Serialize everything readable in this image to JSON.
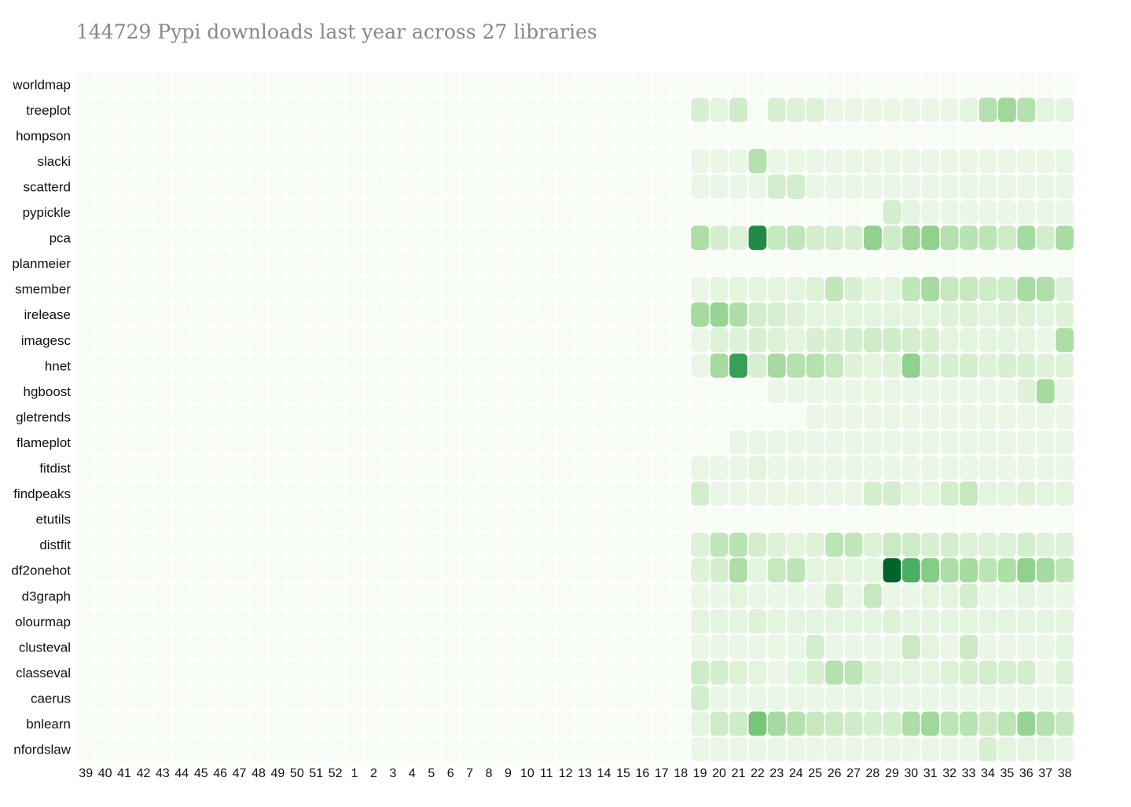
{
  "chart_data": {
    "type": "heatmap",
    "title": "144729 Pypi downloads last year across 27 libraries",
    "columns": [
      "39",
      "40",
      "41",
      "42",
      "43",
      "44",
      "45",
      "46",
      "47",
      "48",
      "49",
      "50",
      "51",
      "52",
      "1",
      "2",
      "3",
      "4",
      "5",
      "6",
      "7",
      "8",
      "9",
      "10",
      "11",
      "12",
      "13",
      "14",
      "15",
      "16",
      "17",
      "18",
      "19",
      "20",
      "21",
      "22",
      "23",
      "24",
      "25",
      "26",
      "27",
      "28",
      "29",
      "30",
      "31",
      "32",
      "33",
      "34",
      "35",
      "36",
      "37",
      "38"
    ],
    "rows": [
      "worldmap",
      "treeplot",
      "hompson",
      "slacki",
      "scatterd",
      "pypickle",
      "pca",
      "planmeier",
      "smember",
      "irelease",
      "imagesc",
      "hnet",
      "hgboost",
      "gletrends",
      "flameplot",
      "fitdist",
      "findpeaks",
      "etutils",
      "distfit",
      "df2onehot",
      "d3graph",
      "olourmap",
      "clusteval",
      "classeval",
      "caerus",
      "bnlearn",
      "nfordslaw"
    ],
    "colors": {
      "scale": [
        "#f7fcf5",
        "#e5f5e0",
        "#c7e9c0",
        "#a1d99b",
        "#74c476",
        "#41ab5d",
        "#238b45",
        "#006d2c",
        "#00441b"
      ],
      "background": "#ffffff"
    },
    "values": {
      "worldmap": [
        0,
        0,
        0,
        0,
        0,
        0,
        0,
        0,
        0,
        0,
        0,
        0,
        0,
        0,
        0,
        0,
        0,
        0,
        0,
        0,
        0,
        0,
        0,
        0,
        0,
        0,
        0,
        0,
        0,
        0,
        0,
        0,
        0,
        0,
        0,
        0,
        0,
        0,
        0,
        0,
        0,
        0,
        0,
        0,
        0,
        0,
        0,
        0,
        0,
        0,
        0,
        0
      ],
      "treeplot": [
        0,
        0,
        0,
        0,
        0,
        0,
        0,
        0,
        0,
        0,
        0,
        0,
        0,
        0,
        0,
        0,
        0,
        0,
        0,
        0,
        0,
        0,
        0,
        0,
        0,
        0,
        0,
        0,
        0,
        0,
        0,
        0,
        4,
        2,
        6,
        0,
        4,
        3,
        3,
        1,
        1,
        1,
        1,
        1,
        1,
        1,
        2,
        12,
        18,
        12,
        2,
        2
      ],
      "hompson": [
        0,
        0,
        0,
        0,
        0,
        0,
        0,
        0,
        0,
        0,
        0,
        0,
        0,
        0,
        0,
        0,
        0,
        0,
        0,
        0,
        0,
        0,
        0,
        0,
        0,
        0,
        0,
        0,
        0,
        0,
        0,
        0,
        0,
        0,
        0,
        0,
        0,
        0,
        0,
        0,
        0,
        0,
        0,
        0,
        0,
        0,
        0,
        0,
        0,
        0,
        0,
        0
      ],
      "slacki": [
        0,
        0,
        0,
        0,
        0,
        0,
        0,
        0,
        0,
        0,
        0,
        0,
        0,
        0,
        0,
        0,
        0,
        0,
        0,
        0,
        0,
        0,
        0,
        0,
        0,
        0,
        0,
        0,
        0,
        0,
        0,
        0,
        1,
        1,
        1,
        12,
        1,
        1,
        1,
        1,
        1,
        1,
        1,
        1,
        1,
        1,
        1,
        1,
        1,
        1,
        1,
        1
      ],
      "scatterd": [
        0,
        0,
        0,
        0,
        0,
        0,
        0,
        0,
        0,
        0,
        0,
        0,
        0,
        0,
        0,
        0,
        0,
        0,
        0,
        0,
        0,
        0,
        0,
        0,
        0,
        0,
        0,
        0,
        0,
        0,
        0,
        0,
        1,
        1,
        1,
        1,
        5,
        5,
        1,
        1,
        1,
        1,
        1,
        1,
        1,
        1,
        1,
        1,
        1,
        1,
        1,
        1
      ],
      "pypickle": [
        0,
        0,
        0,
        0,
        0,
        0,
        0,
        0,
        0,
        0,
        0,
        0,
        0,
        0,
        0,
        0,
        0,
        0,
        0,
        0,
        0,
        0,
        0,
        0,
        0,
        0,
        0,
        0,
        0,
        0,
        0,
        0,
        0,
        0,
        0,
        0,
        0,
        0,
        0,
        0,
        0,
        0,
        5,
        2,
        1,
        1,
        1,
        1,
        1,
        1,
        1,
        1
      ],
      "pca": [
        0,
        0,
        0,
        0,
        0,
        0,
        0,
        0,
        0,
        0,
        0,
        0,
        0,
        0,
        0,
        0,
        0,
        0,
        0,
        0,
        0,
        0,
        0,
        0,
        0,
        0,
        0,
        0,
        0,
        0,
        0,
        0,
        14,
        5,
        3,
        70,
        8,
        9,
        5,
        5,
        4,
        22,
        6,
        18,
        22,
        12,
        11,
        10,
        6,
        16,
        5,
        15
      ],
      "planmeier": [
        0,
        0,
        0,
        0,
        0,
        0,
        0,
        0,
        0,
        0,
        0,
        0,
        0,
        0,
        0,
        0,
        0,
        0,
        0,
        0,
        0,
        0,
        0,
        0,
        0,
        0,
        0,
        0,
        0,
        0,
        0,
        0,
        0,
        0,
        0,
        0,
        0,
        0,
        0,
        0,
        0,
        0,
        0,
        0,
        0,
        0,
        0,
        0,
        0,
        0,
        0,
        0
      ],
      "smember": [
        0,
        0,
        0,
        0,
        0,
        0,
        0,
        0,
        0,
        0,
        0,
        0,
        0,
        0,
        0,
        0,
        0,
        0,
        0,
        0,
        0,
        0,
        0,
        0,
        0,
        0,
        0,
        0,
        0,
        0,
        0,
        0,
        1,
        2,
        2,
        2,
        2,
        2,
        3,
        9,
        4,
        2,
        2,
        9,
        16,
        8,
        8,
        6,
        6,
        15,
        13,
        3
      ],
      "irelease": [
        0,
        0,
        0,
        0,
        0,
        0,
        0,
        0,
        0,
        0,
        0,
        0,
        0,
        0,
        0,
        0,
        0,
        0,
        0,
        0,
        0,
        0,
        0,
        0,
        0,
        0,
        0,
        0,
        0,
        0,
        0,
        0,
        16,
        20,
        14,
        5,
        4,
        3,
        2,
        2,
        2,
        2,
        2,
        2,
        2,
        3,
        3,
        2,
        3,
        3,
        2,
        3
      ],
      "imagesc": [
        0,
        0,
        0,
        0,
        0,
        0,
        0,
        0,
        0,
        0,
        0,
        0,
        0,
        0,
        0,
        0,
        0,
        0,
        0,
        0,
        0,
        0,
        0,
        0,
        0,
        0,
        0,
        0,
        0,
        0,
        0,
        0,
        1,
        3,
        3,
        4,
        3,
        2,
        4,
        4,
        5,
        6,
        6,
        5,
        4,
        2,
        2,
        2,
        2,
        2,
        1,
        14
      ],
      "hnet": [
        0,
        0,
        0,
        0,
        0,
        0,
        0,
        0,
        0,
        0,
        0,
        0,
        0,
        0,
        0,
        0,
        0,
        0,
        0,
        0,
        0,
        0,
        0,
        0,
        0,
        0,
        0,
        0,
        0,
        0,
        0,
        0,
        1,
        16,
        55,
        4,
        16,
        12,
        12,
        8,
        3,
        2,
        3,
        22,
        4,
        4,
        5,
        3,
        4,
        4,
        3,
        3
      ],
      "hgboost": [
        0,
        0,
        0,
        0,
        0,
        0,
        0,
        0,
        0,
        0,
        0,
        0,
        0,
        0,
        0,
        0,
        0,
        0,
        0,
        0,
        0,
        0,
        0,
        0,
        0,
        0,
        0,
        0,
        0,
        0,
        0,
        0,
        0,
        0,
        0,
        0,
        1,
        1,
        1,
        1,
        1,
        1,
        1,
        1,
        1,
        1,
        1,
        1,
        1,
        3,
        16,
        1
      ],
      "gletrends": [
        0,
        0,
        0,
        0,
        0,
        0,
        0,
        0,
        0,
        0,
        0,
        0,
        0,
        0,
        0,
        0,
        0,
        0,
        0,
        0,
        0,
        0,
        0,
        0,
        0,
        0,
        0,
        0,
        0,
        0,
        0,
        0,
        0,
        0,
        0,
        0,
        0,
        0,
        1,
        1,
        1,
        1,
        1,
        1,
        1,
        1,
        1,
        1,
        1,
        1,
        1,
        1
      ],
      "flameplot": [
        0,
        0,
        0,
        0,
        0,
        0,
        0,
        0,
        0,
        0,
        0,
        0,
        0,
        0,
        0,
        0,
        0,
        0,
        0,
        0,
        0,
        0,
        0,
        0,
        0,
        0,
        0,
        0,
        0,
        0,
        0,
        0,
        0,
        0,
        1,
        1,
        1,
        1,
        1,
        1,
        1,
        1,
        1,
        1,
        1,
        1,
        1,
        1,
        1,
        1,
        1,
        1
      ],
      "fitdist": [
        0,
        0,
        0,
        0,
        0,
        0,
        0,
        0,
        0,
        0,
        0,
        0,
        0,
        0,
        0,
        0,
        0,
        0,
        0,
        0,
        0,
        0,
        0,
        0,
        0,
        0,
        0,
        0,
        0,
        0,
        0,
        0,
        1,
        1,
        1,
        2,
        1,
        1,
        1,
        1,
        1,
        1,
        1,
        1,
        1,
        1,
        1,
        1,
        1,
        1,
        1,
        1
      ],
      "findpeaks": [
        0,
        0,
        0,
        0,
        0,
        0,
        0,
        0,
        0,
        0,
        0,
        0,
        0,
        0,
        0,
        0,
        0,
        0,
        0,
        0,
        0,
        0,
        0,
        0,
        0,
        0,
        0,
        0,
        0,
        0,
        0,
        0,
        5,
        1,
        1,
        1,
        1,
        1,
        1,
        1,
        1,
        5,
        5,
        2,
        2,
        5,
        8,
        2,
        2,
        3,
        2,
        2
      ],
      "etutils": [
        0,
        0,
        0,
        0,
        0,
        0,
        0,
        0,
        0,
        0,
        0,
        0,
        0,
        0,
        0,
        0,
        0,
        0,
        0,
        0,
        0,
        0,
        0,
        0,
        0,
        0,
        0,
        0,
        0,
        0,
        0,
        0,
        0,
        0,
        0,
        0,
        0,
        0,
        0,
        0,
        0,
        0,
        0,
        0,
        0,
        0,
        0,
        0,
        0,
        0,
        0,
        0
      ],
      "distfit": [
        0,
        0,
        0,
        0,
        0,
        0,
        0,
        0,
        0,
        0,
        0,
        0,
        0,
        0,
        0,
        0,
        0,
        0,
        0,
        0,
        0,
        0,
        0,
        0,
        0,
        0,
        0,
        0,
        0,
        0,
        0,
        0,
        3,
        9,
        11,
        5,
        3,
        2,
        3,
        10,
        9,
        3,
        7,
        6,
        4,
        5,
        3,
        3,
        3,
        5,
        3,
        3
      ],
      "df2onehot": [
        0,
        0,
        0,
        0,
        0,
        0,
        0,
        0,
        0,
        0,
        0,
        0,
        0,
        0,
        0,
        0,
        0,
        0,
        0,
        0,
        0,
        0,
        0,
        0,
        0,
        0,
        0,
        0,
        0,
        0,
        0,
        0,
        3,
        5,
        14,
        2,
        8,
        10,
        2,
        2,
        2,
        2,
        100,
        45,
        25,
        14,
        16,
        10,
        14,
        22,
        16,
        9
      ],
      "d3graph": [
        0,
        0,
        0,
        0,
        0,
        0,
        0,
        0,
        0,
        0,
        0,
        0,
        0,
        0,
        0,
        0,
        0,
        0,
        0,
        0,
        0,
        0,
        0,
        0,
        0,
        0,
        0,
        0,
        0,
        0,
        0,
        0,
        1,
        1,
        2,
        1,
        1,
        1,
        1,
        5,
        1,
        8,
        1,
        1,
        2,
        2,
        5,
        1,
        1,
        2,
        1,
        1
      ],
      "olourmap": [
        0,
        0,
        0,
        0,
        0,
        0,
        0,
        0,
        0,
        0,
        0,
        0,
        0,
        0,
        0,
        0,
        0,
        0,
        0,
        0,
        0,
        0,
        0,
        0,
        0,
        0,
        0,
        0,
        0,
        0,
        0,
        0,
        2,
        2,
        2,
        3,
        2,
        2,
        2,
        2,
        2,
        2,
        3,
        2,
        2,
        2,
        2,
        2,
        2,
        2,
        2,
        2
      ],
      "clusteval": [
        0,
        0,
        0,
        0,
        0,
        0,
        0,
        0,
        0,
        0,
        0,
        0,
        0,
        0,
        0,
        0,
        0,
        0,
        0,
        0,
        0,
        0,
        0,
        0,
        0,
        0,
        0,
        0,
        0,
        0,
        0,
        0,
        1,
        1,
        1,
        1,
        1,
        1,
        5,
        1,
        1,
        1,
        1,
        7,
        2,
        1,
        7,
        1,
        1,
        1,
        1,
        2
      ],
      "classeval": [
        0,
        0,
        0,
        0,
        0,
        0,
        0,
        0,
        0,
        0,
        0,
        0,
        0,
        0,
        0,
        0,
        0,
        0,
        0,
        0,
        0,
        0,
        0,
        0,
        0,
        0,
        0,
        0,
        0,
        0,
        0,
        0,
        6,
        5,
        3,
        2,
        1,
        2,
        4,
        12,
        10,
        3,
        2,
        2,
        2,
        3,
        4,
        5,
        4,
        5,
        1,
        3
      ],
      "caerus": [
        0,
        0,
        0,
        0,
        0,
        0,
        0,
        0,
        0,
        0,
        0,
        0,
        0,
        0,
        0,
        0,
        0,
        0,
        0,
        0,
        0,
        0,
        0,
        0,
        0,
        0,
        0,
        0,
        0,
        0,
        0,
        0,
        5,
        1,
        1,
        1,
        1,
        1,
        1,
        1,
        1,
        1,
        1,
        1,
        1,
        1,
        1,
        1,
        1,
        1,
        1,
        1
      ],
      "bnlearn": [
        0,
        0,
        0,
        0,
        0,
        0,
        0,
        0,
        0,
        0,
        0,
        0,
        0,
        0,
        0,
        0,
        0,
        0,
        0,
        0,
        0,
        0,
        0,
        0,
        0,
        0,
        0,
        0,
        0,
        0,
        0,
        0,
        2,
        6,
        6,
        30,
        16,
        12,
        8,
        7,
        6,
        4,
        5,
        14,
        18,
        10,
        11,
        7,
        10,
        20,
        12,
        8
      ],
      "nfordslaw": [
        0,
        0,
        0,
        0,
        0,
        0,
        0,
        0,
        0,
        0,
        0,
        0,
        0,
        0,
        0,
        0,
        0,
        0,
        0,
        0,
        0,
        0,
        0,
        0,
        0,
        0,
        0,
        0,
        0,
        0,
        0,
        0,
        1,
        1,
        1,
        1,
        1,
        1,
        1,
        1,
        1,
        1,
        1,
        1,
        1,
        1,
        1,
        4,
        2,
        2,
        2,
        1
      ]
    },
    "xlabel": "",
    "ylabel": "",
    "legend": "none"
  }
}
